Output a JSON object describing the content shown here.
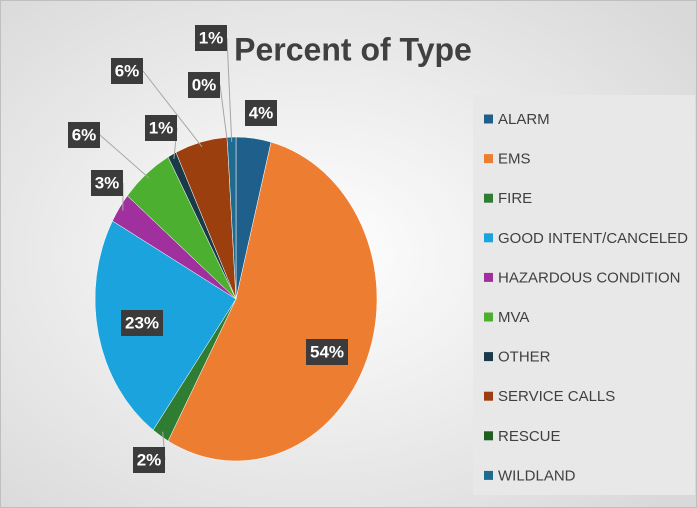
{
  "chart_data": {
    "type": "pie",
    "title": "Percent of Type",
    "categories": [
      "ALARM",
      "EMS",
      "FIRE",
      "GOOD INTENT/CANCELED",
      "HAZARDOUS CONDITION",
      "MVA",
      "OTHER",
      "SERVICE CALLS",
      "RESCUE",
      "WILDLAND"
    ],
    "values": [
      4,
      54,
      2,
      23,
      3,
      6,
      1,
      6,
      0,
      1
    ],
    "value_labels": [
      "4%",
      "54%",
      "2%",
      "23%",
      "3%",
      "6%",
      "1%",
      "6%",
      "0%",
      "1%"
    ],
    "colors": [
      "#1f5f8b",
      "#ed7d31",
      "#2e7d32",
      "#1aa3dc",
      "#a0309e",
      "#4caf30",
      "#1a3a4a",
      "#9c3f0e",
      "#1e5e20",
      "#1f6b8f"
    ],
    "legend": "right"
  }
}
